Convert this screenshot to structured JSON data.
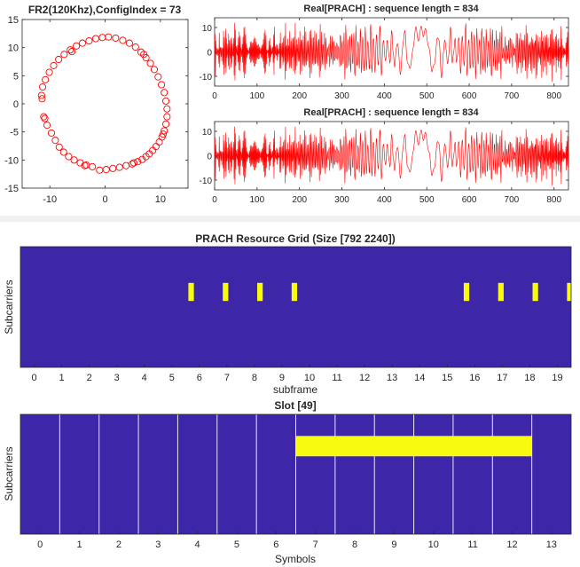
{
  "chart_data": [
    {
      "type": "scatter",
      "title": "FR2(120Khz),ConfigIndex = 73",
      "xlabel": "",
      "ylabel": "",
      "xlim": [
        -15,
        15
      ],
      "ylim": [
        -15,
        15
      ],
      "xticks": [
        "-10",
        "0",
        "10"
      ],
      "yticks": [
        "15",
        "10",
        "5",
        "0",
        "-5",
        "-10",
        "-15"
      ],
      "marker": "circle",
      "color": "#ff0000",
      "points": [
        [
          -0.5,
          11.8
        ],
        [
          0.6,
          11.9
        ],
        [
          1.9,
          11.7
        ],
        [
          3.2,
          11.3
        ],
        [
          4.4,
          10.8
        ],
        [
          5.5,
          10.1
        ],
        [
          6.5,
          9.2
        ],
        [
          7.4,
          8.2
        ],
        [
          8.2,
          7.2
        ],
        [
          8.9,
          6.1
        ],
        [
          9.6,
          4.8
        ],
        [
          10.2,
          3.4
        ],
        [
          10.7,
          2.0
        ],
        [
          11.0,
          0.5
        ],
        [
          11.2,
          -0.9
        ],
        [
          11.2,
          -2.3
        ],
        [
          11.0,
          -3.6
        ],
        [
          10.7,
          -4.8
        ],
        [
          10.3,
          -5.9
        ],
        [
          9.8,
          -6.8
        ],
        [
          9.2,
          -7.6
        ],
        [
          8.6,
          -8.3
        ],
        [
          8.0,
          -8.9
        ],
        [
          7.4,
          -9.4
        ],
        [
          6.7,
          -9.9
        ],
        [
          5.9,
          -10.3
        ],
        [
          4.9,
          -10.7
        ],
        [
          3.8,
          -11.0
        ],
        [
          2.6,
          -11.3
        ],
        [
          1.4,
          -11.5
        ],
        [
          0.2,
          -11.7
        ],
        [
          -1.0,
          -11.8
        ],
        [
          -2.3,
          -11.2
        ],
        [
          -3.4,
          -10.9
        ],
        [
          -4.5,
          -10.5
        ],
        [
          -5.6,
          -10.0
        ],
        [
          -6.6,
          -9.4
        ],
        [
          -7.5,
          -8.6
        ],
        [
          -8.3,
          -7.7
        ],
        [
          -9.0,
          -6.5
        ],
        [
          -9.7,
          -5.2
        ],
        [
          -10.5,
          -3.8
        ],
        [
          -11.1,
          -2.3
        ],
        [
          -11.5,
          1.5
        ],
        [
          -11.3,
          3.0
        ],
        [
          -10.8,
          4.3
        ],
        [
          -10.1,
          5.6
        ],
        [
          -9.3,
          6.8
        ],
        [
          -8.4,
          7.9
        ],
        [
          -7.4,
          8.8
        ],
        [
          -6.3,
          9.6
        ],
        [
          -5.2,
          10.3
        ],
        [
          -4.1,
          10.8
        ],
        [
          -2.9,
          11.2
        ],
        [
          -1.7,
          11.6
        ],
        [
          -11.4,
          0.9
        ],
        [
          -10.9,
          -2.6
        ],
        [
          -6.0,
          9.3
        ],
        [
          7.0,
          8.8
        ],
        [
          10.5,
          -5.4
        ],
        [
          -3.7,
          -11.0
        ],
        [
          5.2,
          -10.5
        ]
      ]
    },
    {
      "type": "line",
      "title": "Real[PRACH] : sequence length = 834",
      "xlim": [
        0,
        834
      ],
      "ylim": [
        -14,
        14
      ],
      "xticks": [
        "0",
        "100",
        "200",
        "300",
        "400",
        "500",
        "600",
        "700",
        "800"
      ],
      "yticks": [
        "10",
        "0",
        "-10"
      ],
      "color": "#ff0000",
      "signal": {
        "bursts": 6,
        "burst_period": 139,
        "amplitude": 12.5
      }
    },
    {
      "type": "line",
      "title": "Real[PRACH] : sequence length = 834",
      "xlim": [
        0,
        834
      ],
      "ylim": [
        -14,
        14
      ],
      "xticks": [
        "0",
        "100",
        "200",
        "300",
        "400",
        "500",
        "600",
        "700",
        "800"
      ],
      "yticks": [
        "10",
        "0",
        "-10"
      ],
      "color": "#ff0000",
      "signal": {
        "bursts": 6,
        "burst_period": 139,
        "amplitude": 12.5
      }
    },
    {
      "type": "heatmap",
      "title": "PRACH Resource Grid (Size [792 2240])",
      "xlabel": "subframe",
      "ylabel": "Subcarriers",
      "xlim": [
        -0.5,
        19.5
      ],
      "ylim": [
        0,
        1
      ],
      "xticks": [
        "0",
        "1",
        "2",
        "3",
        "4",
        "5",
        "6",
        "7",
        "8",
        "9",
        "10",
        "11",
        "12",
        "13",
        "14",
        "15",
        "16",
        "17",
        "18",
        "19"
      ],
      "background_color": "#3d26a8",
      "highlight_color": "#f9fb0e",
      "cells": [
        {
          "x0": 5.6,
          "x1": 5.8,
          "y0": 0.3,
          "y1": 0.45
        },
        {
          "x0": 6.85,
          "x1": 7.05,
          "y0": 0.3,
          "y1": 0.45
        },
        {
          "x0": 8.1,
          "x1": 8.3,
          "y0": 0.3,
          "y1": 0.45
        },
        {
          "x0": 9.35,
          "x1": 9.55,
          "y0": 0.3,
          "y1": 0.45
        },
        {
          "x0": 15.6,
          "x1": 15.8,
          "y0": 0.3,
          "y1": 0.45
        },
        {
          "x0": 16.85,
          "x1": 17.05,
          "y0": 0.3,
          "y1": 0.45
        },
        {
          "x0": 18.1,
          "x1": 18.3,
          "y0": 0.3,
          "y1": 0.45
        },
        {
          "x0": 19.35,
          "x1": 19.5,
          "y0": 0.3,
          "y1": 0.45
        }
      ]
    },
    {
      "type": "heatmap",
      "title": "Slot [49]",
      "xlabel": "Symbols",
      "ylabel": "Subcarriers",
      "xlim": [
        -0.5,
        13.5
      ],
      "ylim": [
        0,
        1
      ],
      "xticks": [
        "0",
        "1",
        "2",
        "3",
        "4",
        "5",
        "6",
        "7",
        "8",
        "9",
        "10",
        "11",
        "12",
        "13"
      ],
      "background_color": "#3d26a8",
      "highlight_color": "#f9fb0e",
      "symbol_boundaries": [
        0.5,
        1.5,
        2.5,
        3.5,
        4.5,
        5.5,
        6.5,
        7.5,
        8.5,
        9.5,
        10.5,
        11.5,
        12.5
      ],
      "cells": [
        {
          "x0": 6.5,
          "x1": 12.5,
          "y0": 0.18,
          "y1": 0.35
        }
      ]
    }
  ]
}
